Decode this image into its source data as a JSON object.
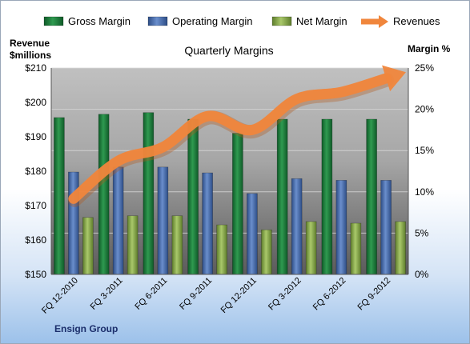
{
  "chart_data": {
    "type": "bar",
    "title": "Quarterly Margins",
    "company": "Ensign Group",
    "y_left_label_line1": "Revenue",
    "y_left_label_line2": "$millions",
    "y_right_label": "Margin %",
    "categories": [
      "FQ 12-2010",
      "FQ 3-2011",
      "FQ 6-2011",
      "FQ 9-2011",
      "FQ 12-2011",
      "FQ 3-2012",
      "FQ 6-2012",
      "FQ 9-2012"
    ],
    "series": [
      {
        "name": "Gross Margin",
        "type": "bar",
        "axis": "right",
        "values": [
          19.0,
          19.4,
          19.6,
          18.8,
          17.1,
          18.8,
          18.8,
          18.8
        ],
        "color": "#1e7a3c"
      },
      {
        "name": "Operating Margin",
        "type": "bar",
        "axis": "right",
        "values": [
          12.4,
          13.0,
          13.0,
          12.3,
          9.8,
          11.6,
          11.4,
          11.4
        ],
        "color": "#4a6fb0"
      },
      {
        "name": "Net Margin",
        "type": "bar",
        "axis": "right",
        "values": [
          6.9,
          7.1,
          7.1,
          6.0,
          5.4,
          6.4,
          6.2,
          6.4
        ],
        "color": "#8fb04e"
      },
      {
        "name": "Revenues",
        "type": "line",
        "axis": "left",
        "values": [
          172,
          183,
          187,
          196,
          192,
          201,
          203,
          207
        ],
        "color": "#f0863c"
      }
    ],
    "y_left": {
      "min": 150,
      "max": 210,
      "step": 10,
      "ticks": [
        "$150",
        "$160",
        "$170",
        "$180",
        "$190",
        "$200",
        "$210"
      ]
    },
    "y_right": {
      "min": 0,
      "max": 25,
      "step": 5,
      "ticks": [
        "0%",
        "5%",
        "10%",
        "15%",
        "20%",
        "25%"
      ]
    },
    "grid": true,
    "legend_position": "top"
  }
}
